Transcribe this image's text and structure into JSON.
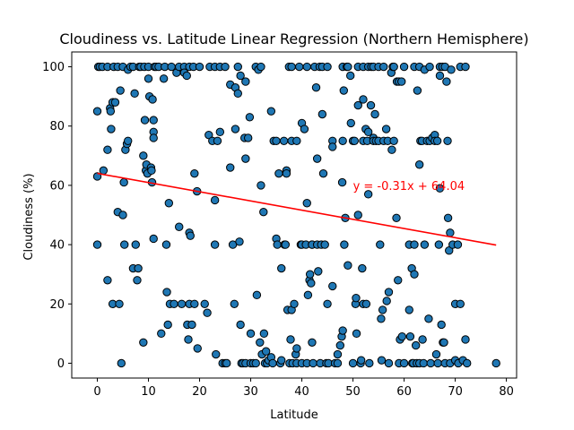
{
  "chart_data": {
    "type": "scatter",
    "title": "Cloudiness vs. Latitude Linear Regression (Northern Hemisphere)",
    "xlabel": "Latitude",
    "ylabel": "Cloudiness (%)",
    "xlim": [
      -5,
      82
    ],
    "ylim": [
      -5,
      105
    ],
    "xticks": [
      0,
      10,
      20,
      30,
      40,
      50,
      60,
      70,
      80
    ],
    "yticks": [
      0,
      20,
      40,
      60,
      80,
      100
    ],
    "grid": false,
    "marker_color": "#1f77b4",
    "marker_edge_color": "#000000",
    "line_color": "#ff0000",
    "regression": {
      "slope": -0.31,
      "intercept": 64.04,
      "x_range": [
        0,
        78
      ]
    },
    "annotation": {
      "text": "y = -0.31x + 64.04",
      "x": 50,
      "y": 60,
      "color": "#ff0000"
    },
    "points": [
      [
        0,
        63
      ],
      [
        0,
        85
      ],
      [
        0,
        40
      ],
      [
        0.2,
        100
      ],
      [
        0.5,
        100
      ],
      [
        1,
        100
      ],
      [
        1.2,
        65
      ],
      [
        2,
        100
      ],
      [
        2,
        72
      ],
      [
        2,
        28
      ],
      [
        2.5,
        86
      ],
      [
        2.6,
        85
      ],
      [
        2.7,
        79
      ],
      [
        3,
        20
      ],
      [
        3,
        88
      ],
      [
        3.2,
        100
      ],
      [
        3.5,
        88
      ],
      [
        4,
        51
      ],
      [
        4,
        100
      ],
      [
        4.3,
        20
      ],
      [
        4.5,
        92
      ],
      [
        4.7,
        0
      ],
      [
        5,
        100
      ],
      [
        5,
        50
      ],
      [
        5.2,
        61
      ],
      [
        5.3,
        40
      ],
      [
        5.5,
        72
      ],
      [
        5.8,
        74
      ],
      [
        6,
        99
      ],
      [
        6,
        75
      ],
      [
        6.5,
        100
      ],
      [
        7,
        100
      ],
      [
        7,
        32
      ],
      [
        7.3,
        91
      ],
      [
        7.5,
        40
      ],
      [
        7.8,
        28
      ],
      [
        8,
        32
      ],
      [
        8.2,
        100
      ],
      [
        8.5,
        100
      ],
      [
        9,
        70
      ],
      [
        9,
        7
      ],
      [
        9.2,
        100
      ],
      [
        9.3,
        82
      ],
      [
        9.5,
        65
      ],
      [
        9.6,
        67
      ],
      [
        9.8,
        64
      ],
      [
        10,
        96
      ],
      [
        10,
        100
      ],
      [
        10.2,
        90
      ],
      [
        10.5,
        66
      ],
      [
        10.6,
        65
      ],
      [
        10.7,
        61
      ],
      [
        10.8,
        89
      ],
      [
        11,
        82
      ],
      [
        11,
        78
      ],
      [
        11,
        76
      ],
      [
        11,
        42
      ],
      [
        11.2,
        100
      ],
      [
        11.5,
        100
      ],
      [
        12,
        100
      ],
      [
        12.5,
        10
      ],
      [
        13,
        96
      ],
      [
        13.2,
        100
      ],
      [
        13.5,
        40
      ],
      [
        13.6,
        24
      ],
      [
        13.8,
        13
      ],
      [
        14,
        54
      ],
      [
        14.2,
        20
      ],
      [
        14.5,
        100
      ],
      [
        15,
        20
      ],
      [
        15.5,
        98
      ],
      [
        16,
        100
      ],
      [
        16,
        46
      ],
      [
        16.5,
        20
      ],
      [
        17,
        100
      ],
      [
        17,
        98
      ],
      [
        17.5,
        97
      ],
      [
        17.6,
        13
      ],
      [
        17.8,
        8
      ],
      [
        18,
        100
      ],
      [
        18,
        20
      ],
      [
        18,
        44
      ],
      [
        18.2,
        43
      ],
      [
        18.5,
        13
      ],
      [
        18.8,
        100
      ],
      [
        19,
        64
      ],
      [
        19,
        20
      ],
      [
        19.5,
        58
      ],
      [
        19.6,
        5
      ],
      [
        20,
        100
      ],
      [
        21,
        20
      ],
      [
        21.5,
        17
      ],
      [
        21.8,
        77
      ],
      [
        22,
        100
      ],
      [
        22.5,
        75
      ],
      [
        23,
        55
      ],
      [
        23,
        40
      ],
      [
        23,
        100
      ],
      [
        23.2,
        3
      ],
      [
        23.5,
        75
      ],
      [
        24,
        100
      ],
      [
        24,
        78
      ],
      [
        24.5,
        0
      ],
      [
        25,
        100
      ],
      [
        25,
        0
      ],
      [
        25.3,
        0
      ],
      [
        26,
        94
      ],
      [
        26,
        66
      ],
      [
        26.5,
        40
      ],
      [
        26.8,
        20
      ],
      [
        27,
        93
      ],
      [
        27,
        79
      ],
      [
        27.5,
        91
      ],
      [
        27.5,
        100
      ],
      [
        27.8,
        41
      ],
      [
        28,
        97
      ],
      [
        28,
        13
      ],
      [
        28.2,
        0
      ],
      [
        28.5,
        0
      ],
      [
        28.8,
        76
      ],
      [
        29,
        95
      ],
      [
        29,
        69
      ],
      [
        29,
        0
      ],
      [
        29.5,
        76
      ],
      [
        29.8,
        83
      ],
      [
        30,
        10
      ],
      [
        30,
        0
      ],
      [
        30.5,
        0
      ],
      [
        31,
        100
      ],
      [
        31,
        0
      ],
      [
        31.2,
        23
      ],
      [
        31.5,
        99
      ],
      [
        31.8,
        7
      ],
      [
        32,
        100
      ],
      [
        32,
        60
      ],
      [
        32.2,
        3
      ],
      [
        32.5,
        51
      ],
      [
        32.6,
        10
      ],
      [
        32.8,
        0
      ],
      [
        33,
        4
      ],
      [
        33.2,
        0
      ],
      [
        33.5,
        1
      ],
      [
        34,
        85
      ],
      [
        34,
        2
      ],
      [
        34.3,
        0
      ],
      [
        34.5,
        75
      ],
      [
        35,
        75
      ],
      [
        35,
        42
      ],
      [
        35.2,
        40
      ],
      [
        35.5,
        64
      ],
      [
        35.8,
        0
      ],
      [
        36,
        32
      ],
      [
        36,
        1
      ],
      [
        36.5,
        75
      ],
      [
        36.6,
        40
      ],
      [
        36.8,
        40
      ],
      [
        37,
        65
      ],
      [
        37,
        64
      ],
      [
        37.2,
        18
      ],
      [
        37.5,
        100
      ],
      [
        37.6,
        0
      ],
      [
        37.8,
        8
      ],
      [
        38,
        100
      ],
      [
        38,
        75
      ],
      [
        38,
        18
      ],
      [
        38.2,
        0
      ],
      [
        38.5,
        20
      ],
      [
        38.8,
        3
      ],
      [
        39,
        75
      ],
      [
        39,
        5
      ],
      [
        39,
        0
      ],
      [
        39.5,
        100
      ],
      [
        39.8,
        40
      ],
      [
        40,
        81
      ],
      [
        40,
        40
      ],
      [
        40,
        0
      ],
      [
        40.5,
        79
      ],
      [
        40.8,
        40
      ],
      [
        41,
        54
      ],
      [
        41,
        100
      ],
      [
        41,
        0
      ],
      [
        41.2,
        23
      ],
      [
        41.5,
        28
      ],
      [
        41.6,
        30
      ],
      [
        41.8,
        27
      ],
      [
        42,
        40
      ],
      [
        42,
        40
      ],
      [
        42,
        7
      ],
      [
        42.2,
        0
      ],
      [
        42.5,
        100
      ],
      [
        42.8,
        93
      ],
      [
        43,
        69
      ],
      [
        43,
        40
      ],
      [
        43.2,
        31
      ],
      [
        43.5,
        100
      ],
      [
        43.6,
        0
      ],
      [
        43.8,
        40
      ],
      [
        44,
        84
      ],
      [
        44,
        100
      ],
      [
        44.2,
        64
      ],
      [
        44.5,
        40
      ],
      [
        44.8,
        0
      ],
      [
        45,
        100
      ],
      [
        45,
        20
      ],
      [
        45.2,
        0
      ],
      [
        46,
        75
      ],
      [
        46,
        73
      ],
      [
        46,
        26
      ],
      [
        46.5,
        0
      ],
      [
        47,
        3
      ],
      [
        47,
        0
      ],
      [
        47.5,
        6
      ],
      [
        47.8,
        9
      ],
      [
        47.9,
        61
      ],
      [
        48,
        11
      ],
      [
        48,
        100
      ],
      [
        48,
        75
      ],
      [
        48.2,
        92
      ],
      [
        48.3,
        40
      ],
      [
        48.5,
        49
      ],
      [
        48.8,
        100
      ],
      [
        49,
        100
      ],
      [
        49,
        33
      ],
      [
        49.5,
        97
      ],
      [
        49.6,
        81
      ],
      [
        50,
        75
      ],
      [
        50,
        0
      ],
      [
        50.3,
        75
      ],
      [
        50.5,
        20
      ],
      [
        50.6,
        22
      ],
      [
        50.7,
        10
      ],
      [
        51,
        100
      ],
      [
        51,
        87
      ],
      [
        51,
        50
      ],
      [
        51.5,
        0
      ],
      [
        51.6,
        1
      ],
      [
        51.8,
        32
      ],
      [
        52,
        100
      ],
      [
        52,
        89
      ],
      [
        52,
        75
      ],
      [
        52,
        20
      ],
      [
        52.5,
        79
      ],
      [
        52.6,
        20
      ],
      [
        52.8,
        75
      ],
      [
        53,
        100
      ],
      [
        53,
        57
      ],
      [
        53,
        78
      ],
      [
        53.2,
        0
      ],
      [
        53.5,
        87
      ],
      [
        53.6,
        100
      ],
      [
        54,
        100
      ],
      [
        54,
        76
      ],
      [
        54,
        75
      ],
      [
        54.3,
        84
      ],
      [
        54.5,
        75
      ],
      [
        55,
        100
      ],
      [
        55,
        75
      ],
      [
        55.3,
        40
      ],
      [
        55.5,
        15
      ],
      [
        55.6,
        1
      ],
      [
        55.8,
        18
      ],
      [
        56,
        100
      ],
      [
        56,
        75
      ],
      [
        56.5,
        79
      ],
      [
        56.6,
        21
      ],
      [
        56.8,
        75
      ],
      [
        57,
        24
      ],
      [
        57,
        0
      ],
      [
        57.5,
        98
      ],
      [
        57.6,
        72
      ],
      [
        57.8,
        100
      ],
      [
        58,
        100
      ],
      [
        58,
        75
      ],
      [
        58.5,
        49
      ],
      [
        58.6,
        95
      ],
      [
        58.8,
        28
      ],
      [
        59,
        0
      ],
      [
        59,
        95
      ],
      [
        59.2,
        8
      ],
      [
        59.5,
        95
      ],
      [
        59.6,
        9
      ],
      [
        60,
        100
      ],
      [
        60,
        0
      ],
      [
        61,
        40
      ],
      [
        61,
        18
      ],
      [
        61.2,
        9
      ],
      [
        61.5,
        32
      ],
      [
        61.6,
        0
      ],
      [
        61.8,
        0
      ],
      [
        62,
        100
      ],
      [
        62,
        40
      ],
      [
        62,
        30
      ],
      [
        62.3,
        6
      ],
      [
        62.5,
        0
      ],
      [
        62.6,
        92
      ],
      [
        63,
        100
      ],
      [
        63,
        67
      ],
      [
        63,
        0
      ],
      [
        63.2,
        75
      ],
      [
        63.5,
        75
      ],
      [
        63.6,
        8
      ],
      [
        63.8,
        0
      ],
      [
        64,
        99
      ],
      [
        64,
        40
      ],
      [
        64.5,
        75
      ],
      [
        64.8,
        15
      ],
      [
        65,
        100
      ],
      [
        65,
        75
      ],
      [
        65.2,
        0
      ],
      [
        65.5,
        76
      ],
      [
        66,
        77
      ],
      [
        66,
        75
      ],
      [
        66.3,
        3
      ],
      [
        66.5,
        75
      ],
      [
        66.6,
        0
      ],
      [
        66.8,
        40
      ],
      [
        67,
        100
      ],
      [
        67,
        59
      ],
      [
        67,
        97
      ],
      [
        67.3,
        13
      ],
      [
        67.5,
        100
      ],
      [
        67.6,
        7
      ],
      [
        67.8,
        7
      ],
      [
        68,
        100
      ],
      [
        68,
        0
      ],
      [
        68.3,
        95
      ],
      [
        68.5,
        75
      ],
      [
        68.6,
        49
      ],
      [
        68.8,
        38
      ],
      [
        69,
        44
      ],
      [
        69,
        0
      ],
      [
        69.2,
        99
      ],
      [
        69.5,
        40
      ],
      [
        70,
        20
      ],
      [
        70,
        1
      ],
      [
        70.5,
        40
      ],
      [
        70.6,
        0
      ],
      [
        71,
        20
      ],
      [
        71,
        100
      ],
      [
        71.5,
        1
      ],
      [
        72,
        100
      ],
      [
        72,
        8
      ],
      [
        72.3,
        0
      ],
      [
        78,
        0
      ]
    ]
  }
}
